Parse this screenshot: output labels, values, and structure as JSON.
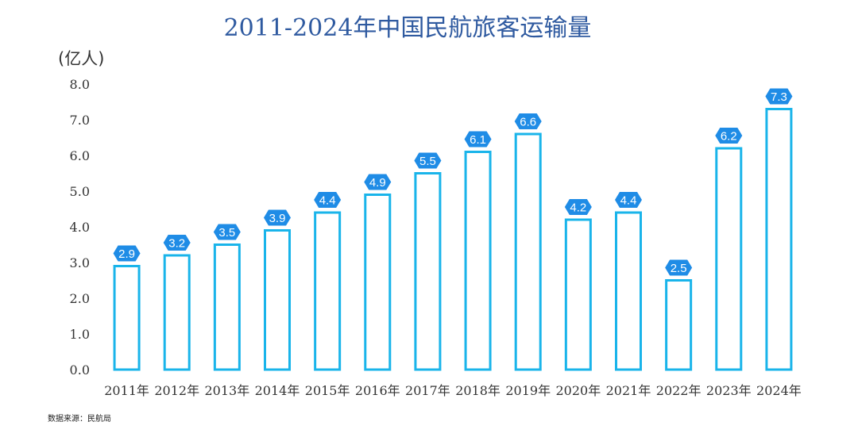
{
  "chart_data": {
    "type": "bar",
    "title": "2011-2024年中国民航旅客运输量",
    "unit_label": "(亿人)",
    "source_note": "数据来源：民航局",
    "ylim": [
      0,
      8.0
    ],
    "yticks": [
      "0.0",
      "1.0",
      "2.0",
      "3.0",
      "4.0",
      "5.0",
      "6.0",
      "7.0",
      "8.0"
    ],
    "categories": [
      "2011年",
      "2012年",
      "2013年",
      "2014年",
      "2015年",
      "2016年",
      "2017年",
      "2018年",
      "2019年",
      "2020年",
      "2021年",
      "2022年",
      "2023年",
      "2024年"
    ],
    "values": [
      2.9,
      3.2,
      3.5,
      3.9,
      4.4,
      4.9,
      5.5,
      6.1,
      6.6,
      4.2,
      4.4,
      2.5,
      6.2,
      7.3
    ],
    "data_labels": [
      "2.9",
      "3.2",
      "3.5",
      "3.9",
      "4.4",
      "4.9",
      "5.5",
      "6.1",
      "6.6",
      "4.2",
      "4.4",
      "2.5",
      "6.2",
      "7.3"
    ],
    "grid": false,
    "legend": "none"
  },
  "colors": {
    "bar_stroke": "#19b4ea",
    "bar_fill": "#ffffff",
    "label_bg": "#1f8ce6",
    "title": "#2f5aa0"
  }
}
